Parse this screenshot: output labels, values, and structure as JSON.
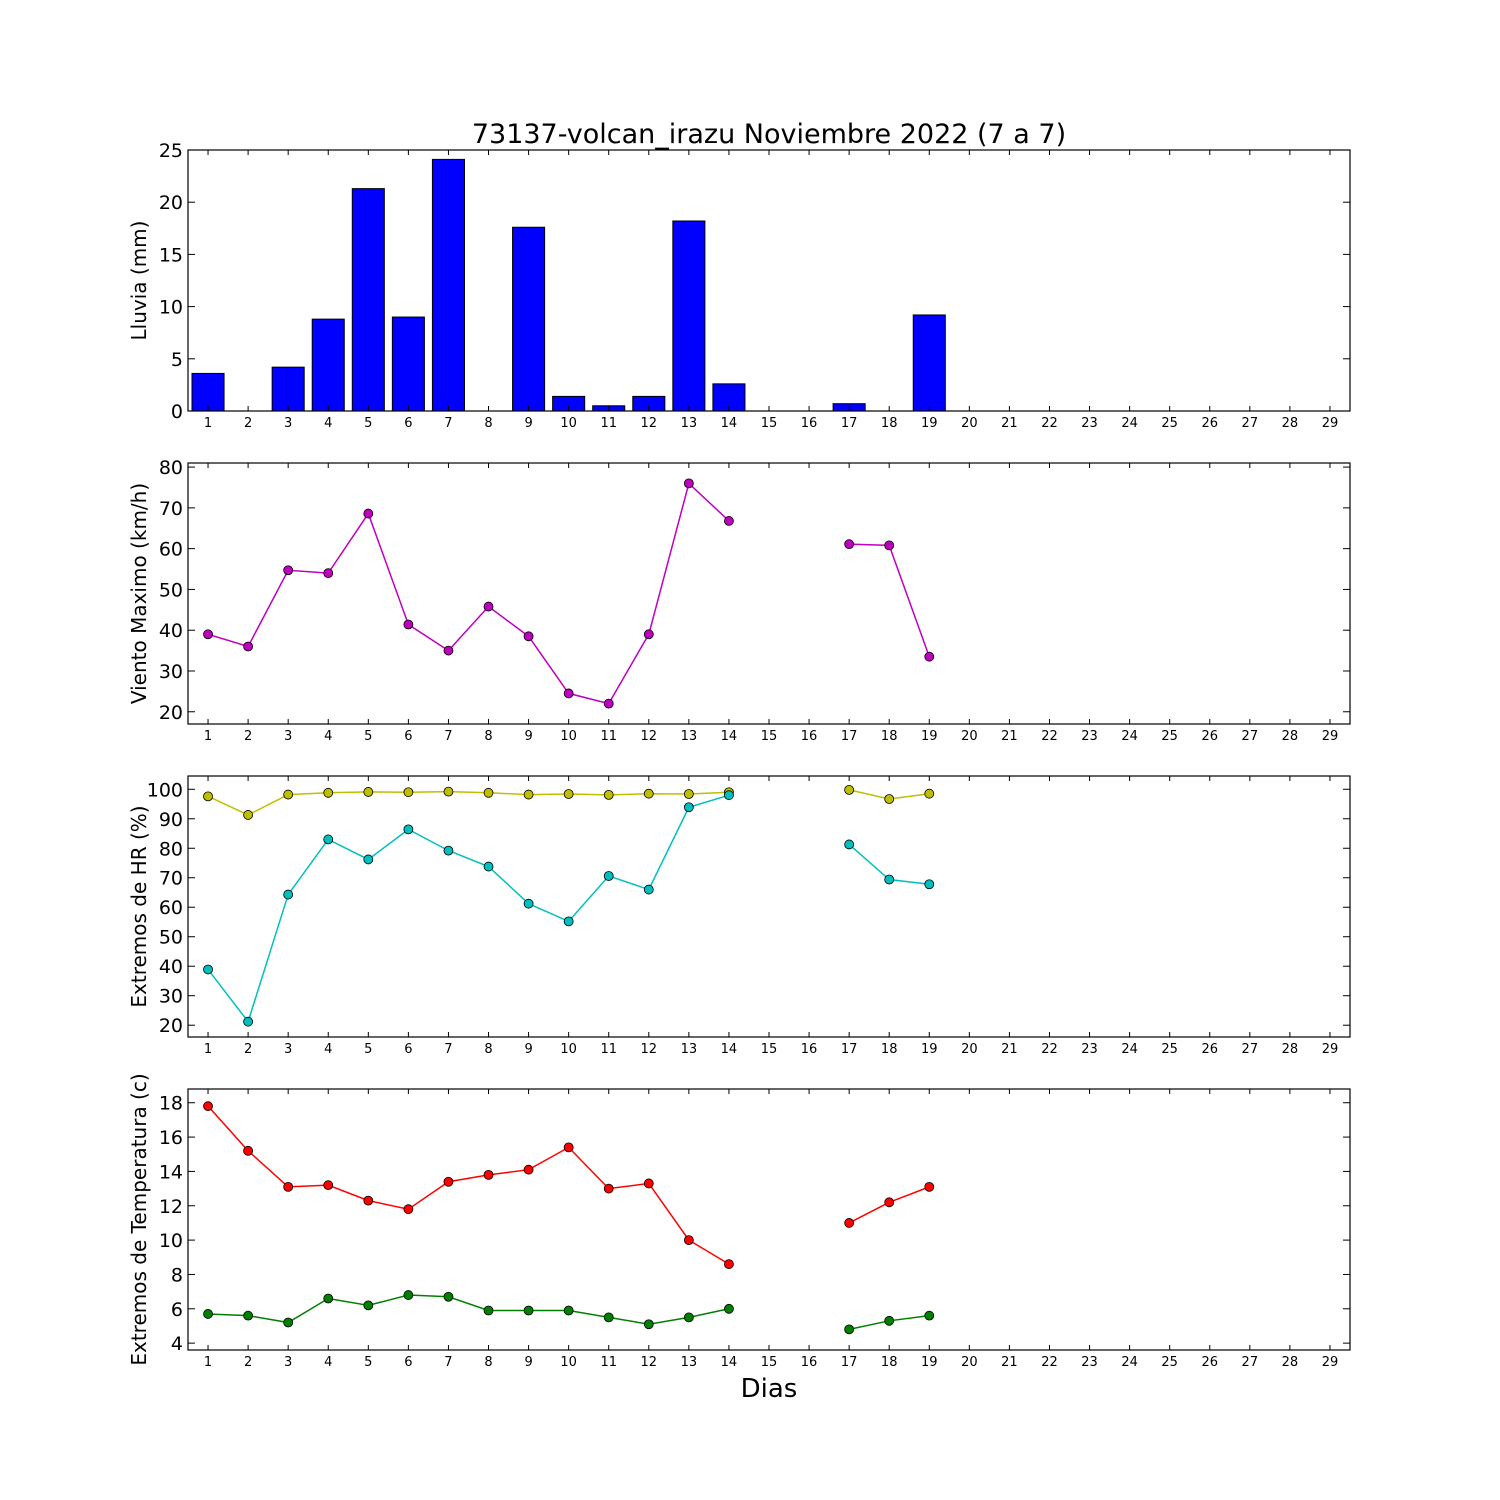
{
  "figure_title": "73137-volcan_irazu Noviembre 2022  (7 a 7)",
  "x_axis_label": "Dias",
  "chart_data": [
    {
      "type": "bar",
      "ylabel": "Lluvia (mm)",
      "xlim": [
        0.5,
        29.5
      ],
      "ylim": [
        0,
        25
      ],
      "yticks": [
        0,
        5,
        10,
        15,
        20,
        25
      ],
      "xticks": [
        1,
        2,
        3,
        4,
        5,
        6,
        7,
        8,
        9,
        10,
        11,
        12,
        13,
        14,
        15,
        16,
        17,
        18,
        19,
        20,
        21,
        22,
        23,
        24,
        25,
        26,
        27,
        28,
        29
      ],
      "x": [
        1,
        2,
        3,
        4,
        5,
        6,
        7,
        8,
        9,
        10,
        11,
        12,
        13,
        14,
        15,
        16,
        17,
        18,
        19,
        20,
        21,
        22,
        23,
        24,
        25,
        26,
        27,
        28,
        29
      ],
      "series": [
        {
          "color": "#0000ff",
          "values": [
            3.6,
            0,
            4.2,
            8.8,
            21.3,
            9.0,
            24.1,
            0,
            17.6,
            1.4,
            0.5,
            1.4,
            18.2,
            2.6,
            0,
            0,
            0.7,
            0,
            9.2,
            0,
            0,
            0,
            0,
            0,
            0,
            0,
            0,
            0,
            0
          ]
        }
      ]
    },
    {
      "type": "line",
      "ylabel": "Viento Maximo (km/h)",
      "xlim": [
        0.5,
        29.5
      ],
      "ylim": [
        17,
        81
      ],
      "yticks": [
        20,
        30,
        40,
        50,
        60,
        70,
        80
      ],
      "xticks": [
        1,
        2,
        3,
        4,
        5,
        6,
        7,
        8,
        9,
        10,
        11,
        12,
        13,
        14,
        15,
        16,
        17,
        18,
        19,
        20,
        21,
        22,
        23,
        24,
        25,
        26,
        27,
        28,
        29
      ],
      "x": [
        1,
        2,
        3,
        4,
        5,
        6,
        7,
        8,
        9,
        10,
        11,
        12,
        13,
        14,
        15,
        16,
        17,
        18,
        19
      ],
      "series": [
        {
          "color": "#bf00bf",
          "values": [
            39.0,
            36.0,
            54.7,
            54.0,
            68.6,
            41.4,
            35.0,
            45.8,
            38.5,
            24.5,
            22.0,
            39.0,
            76.0,
            66.8,
            null,
            null,
            61.1,
            60.8,
            33.5
          ]
        }
      ]
    },
    {
      "type": "line",
      "ylabel": "Extremos de HR (%)",
      "xlim": [
        0.5,
        29.5
      ],
      "ylim": [
        16,
        104.5
      ],
      "yticks": [
        20,
        30,
        40,
        50,
        60,
        70,
        80,
        90,
        100
      ],
      "xticks": [
        1,
        2,
        3,
        4,
        5,
        6,
        7,
        8,
        9,
        10,
        11,
        12,
        13,
        14,
        15,
        16,
        17,
        18,
        19,
        20,
        21,
        22,
        23,
        24,
        25,
        26,
        27,
        28,
        29
      ],
      "x": [
        1,
        2,
        3,
        4,
        5,
        6,
        7,
        8,
        9,
        10,
        11,
        12,
        13,
        14,
        15,
        16,
        17,
        18,
        19
      ],
      "series": [
        {
          "color": "#bfbf00",
          "values": [
            97.6,
            91.3,
            98.2,
            98.8,
            99.1,
            99.0,
            99.2,
            98.8,
            98.2,
            98.4,
            98.1,
            98.5,
            98.4,
            99.0,
            null,
            null,
            99.8,
            96.7,
            98.5
          ]
        },
        {
          "color": "#00bfbf",
          "values": [
            38.9,
            21.2,
            64.3,
            83.0,
            76.2,
            86.4,
            79.2,
            73.8,
            61.2,
            55.2,
            70.6,
            66.0,
            93.9,
            98.0,
            null,
            null,
            81.3,
            69.4,
            67.8
          ]
        }
      ]
    },
    {
      "type": "line",
      "ylabel": "Extremos de Temperatura (c)",
      "xlim": [
        0.5,
        29.5
      ],
      "ylim": [
        3.6,
        18.8
      ],
      "yticks": [
        4,
        6,
        8,
        10,
        12,
        14,
        16,
        18
      ],
      "xticks": [
        1,
        2,
        3,
        4,
        5,
        6,
        7,
        8,
        9,
        10,
        11,
        12,
        13,
        14,
        15,
        16,
        17,
        18,
        19,
        20,
        21,
        22,
        23,
        24,
        25,
        26,
        27,
        28,
        29
      ],
      "x": [
        1,
        2,
        3,
        4,
        5,
        6,
        7,
        8,
        9,
        10,
        11,
        12,
        13,
        14,
        15,
        16,
        17,
        18,
        19
      ],
      "series": [
        {
          "color": "#ff0000",
          "values": [
            17.8,
            15.2,
            13.1,
            13.2,
            12.3,
            11.8,
            13.4,
            13.8,
            14.1,
            15.4,
            13.0,
            13.3,
            10.0,
            8.6,
            null,
            null,
            11.0,
            12.2,
            13.1
          ]
        },
        {
          "color": "#008000",
          "values": [
            5.7,
            5.6,
            5.2,
            6.6,
            6.2,
            6.8,
            6.7,
            5.9,
            5.9,
            5.9,
            5.5,
            5.1,
            5.5,
            6.0,
            null,
            null,
            4.8,
            5.3,
            5.6
          ]
        }
      ]
    }
  ]
}
